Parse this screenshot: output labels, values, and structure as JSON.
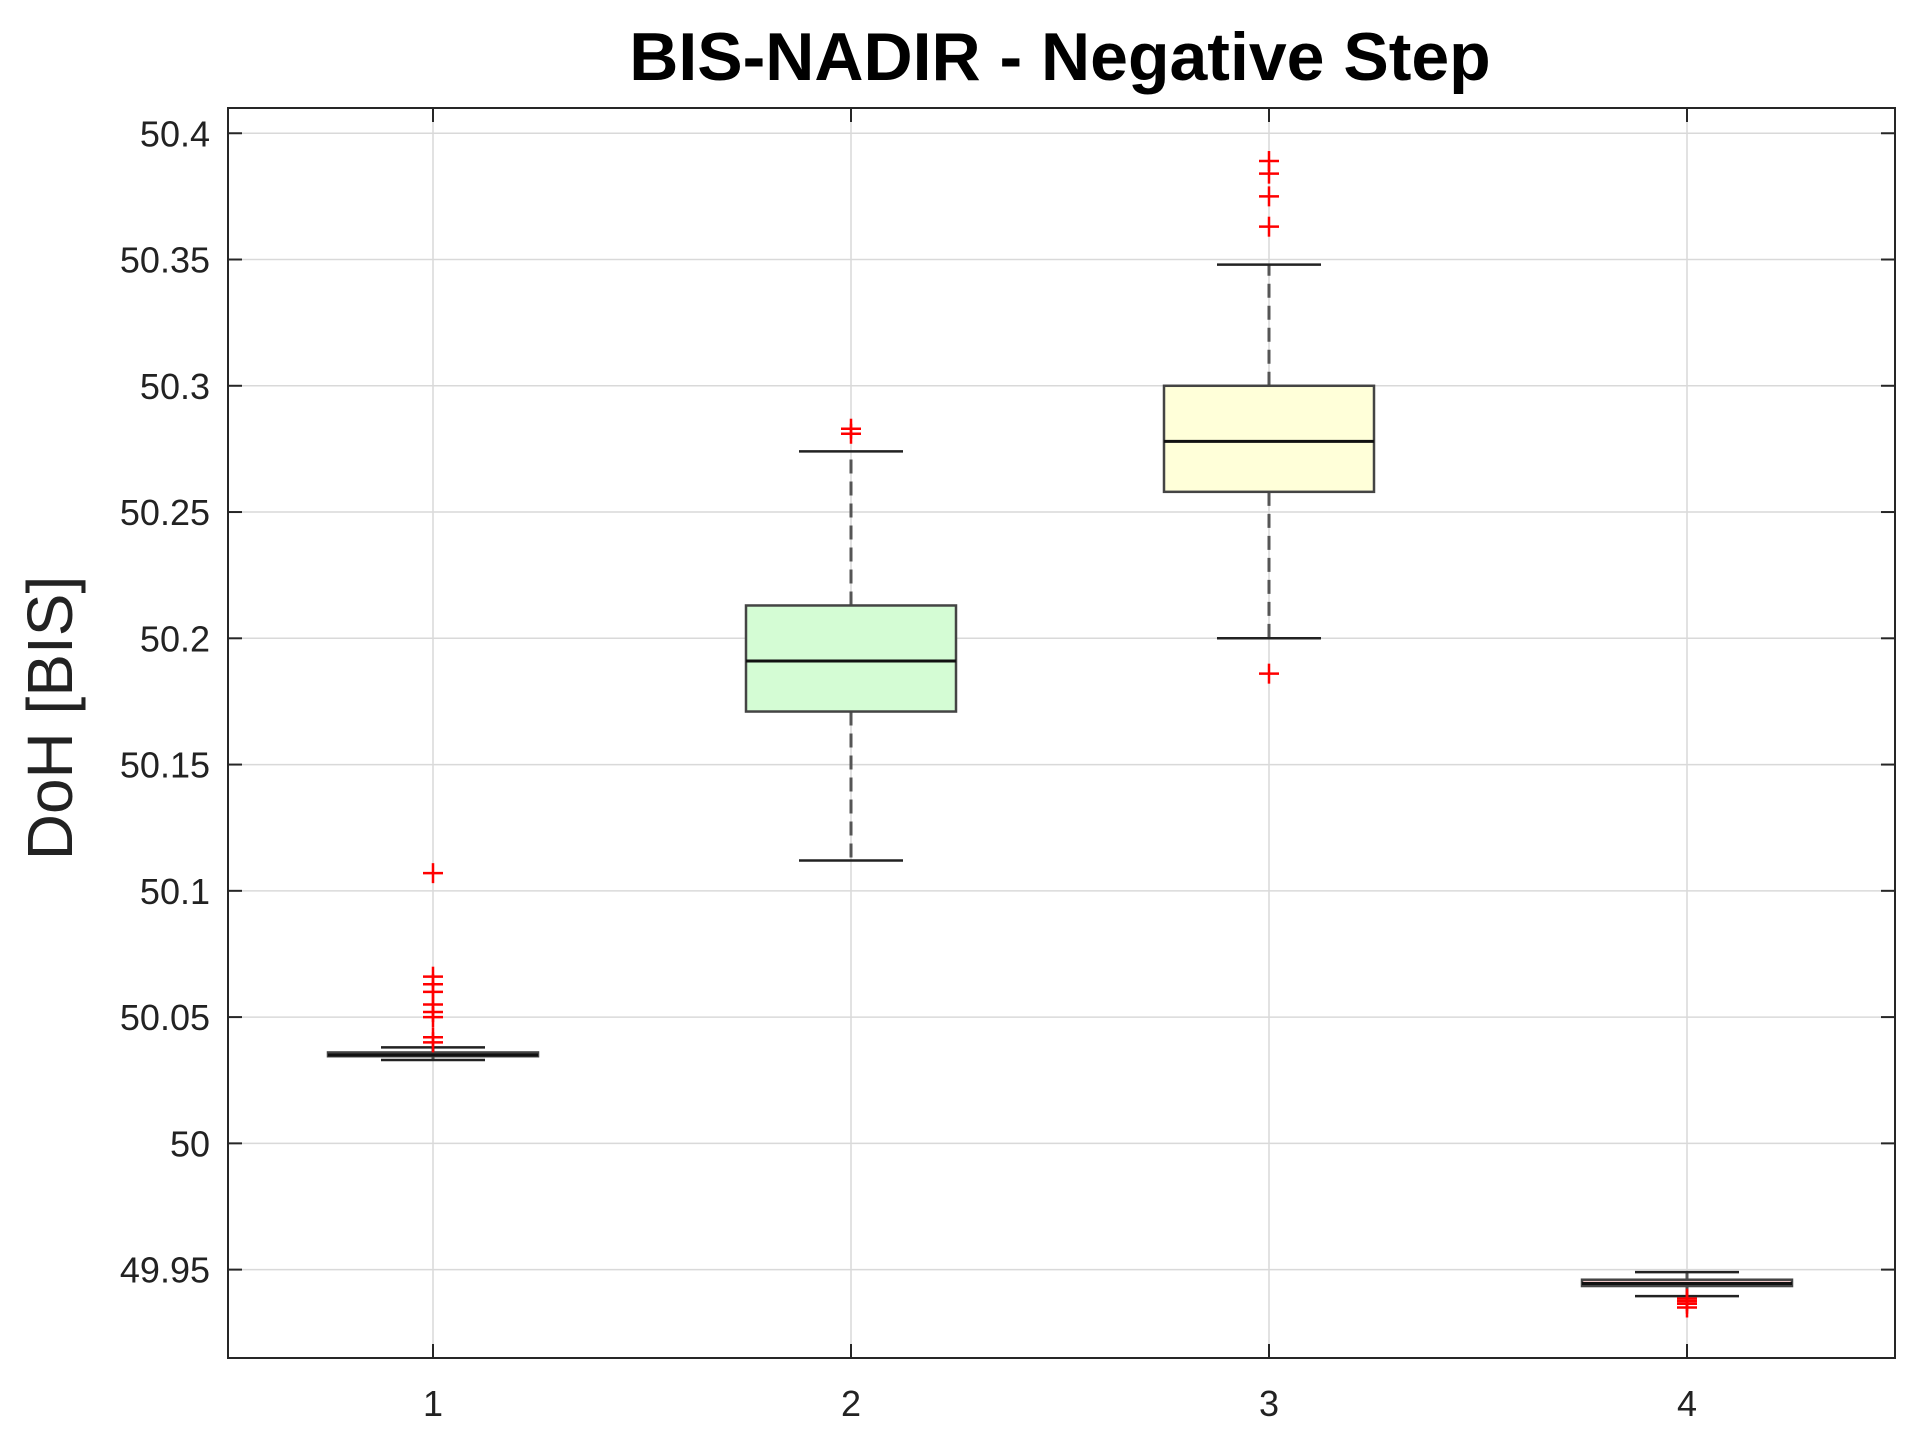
{
  "chart_data": {
    "type": "box",
    "title": "BIS-NADIR - Negative Step",
    "xlabel": "",
    "ylabel": "DoH [BIS]",
    "ylim": [
      49.915,
      50.41
    ],
    "yticks": [
      49.95,
      50,
      50.05,
      50.1,
      50.15,
      50.2,
      50.25,
      50.3,
      50.35,
      50.4
    ],
    "ytick_labels": [
      "49.95",
      "50",
      "50.05",
      "50.1",
      "50.15",
      "50.2",
      "50.25",
      "50.3",
      "50.35",
      "50.4"
    ],
    "categories": [
      "1",
      "2",
      "3",
      "4"
    ],
    "grid": true,
    "boxes": [
      {
        "category": "1",
        "color": "#d9d9d9",
        "lower_whisker": 50.033,
        "q1": 50.0345,
        "median": 50.035,
        "q3": 50.036,
        "upper_whisker": 50.038,
        "outliers": [
          50.107,
          50.066,
          50.063,
          50.06,
          50.055,
          50.052,
          50.05,
          50.042,
          50.04
        ]
      },
      {
        "category": "2",
        "color": "#d4fcd4",
        "lower_whisker": 50.112,
        "q1": 50.171,
        "median": 50.191,
        "q3": 50.213,
        "upper_whisker": 50.274,
        "outliers": [
          50.283,
          50.281
        ]
      },
      {
        "category": "3",
        "color": "#ffffd9",
        "lower_whisker": 50.2,
        "q1": 50.258,
        "median": 50.278,
        "q3": 50.3,
        "upper_whisker": 50.348,
        "outliers": [
          50.389,
          50.384,
          50.375,
          50.363,
          50.186
        ]
      },
      {
        "category": "4",
        "color": "#f2c8c8",
        "lower_whisker": 49.9395,
        "q1": 49.9435,
        "median": 49.9445,
        "q3": 49.946,
        "upper_whisker": 49.949,
        "outliers": [
          49.9385,
          49.9375,
          49.9365,
          49.935
        ]
      }
    ]
  }
}
